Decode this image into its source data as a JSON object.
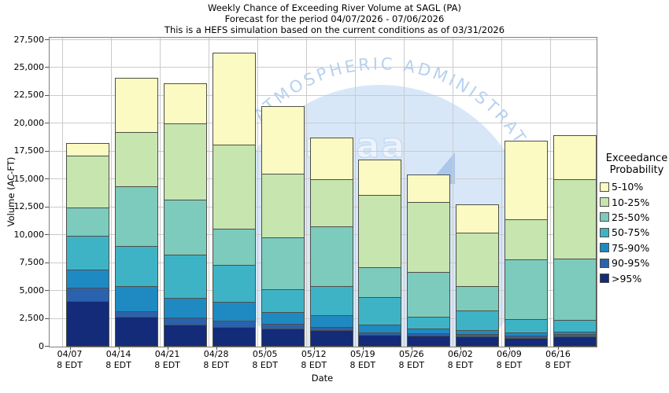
{
  "title": {
    "line1": "Weekly Chance of Exceeding River Volume at SAGL (PA)",
    "line2": "Forecast for the period 04/07/2026 - 07/06/2026",
    "line3": "This is a HEFS simulation based on the current conditions as of 03/31/2026"
  },
  "y_axis": {
    "title": "Volume (AC-FT)",
    "tick_labels": [
      "0",
      "2,500",
      "5,000",
      "7,500",
      "10,000",
      "12,500",
      "15,000",
      "17,500",
      "20,000",
      "22,500",
      "25,000",
      "27,500"
    ]
  },
  "x_axis": {
    "title": "Date",
    "tick_time": "8 EDT",
    "ticks": [
      "04/07",
      "04/14",
      "04/21",
      "04/28",
      "05/05",
      "05/12",
      "05/19",
      "05/26",
      "06/02",
      "06/09",
      "06/16"
    ]
  },
  "legend": {
    "title_lines": [
      "Exceedance",
      "Probability"
    ],
    "entries": [
      {
        "label": "5-10%",
        "color": "#fbfac2"
      },
      {
        "label": "10-25%",
        "color": "#c6e5af"
      },
      {
        "label": "25-50%",
        "color": "#7ccbbd"
      },
      {
        "label": "50-75%",
        "color": "#3fb3c6"
      },
      {
        "label": "75-90%",
        "color": "#1f8ac1"
      },
      {
        "label": "90-95%",
        "color": "#2a62ae"
      },
      {
        "label": ">95%",
        "color": "#132b78"
      }
    ]
  },
  "watermark": {
    "arc_text": "C AND ATMOSPHERIC ADMINISTRAT",
    "logo_text": "noaa"
  },
  "chart_data": {
    "type": "bar",
    "stacked": true,
    "title": "Weekly Chance of Exceeding River Volume at SAGL (PA)",
    "xlabel": "Date",
    "ylabel": "Volume (AC-FT)",
    "ylim": [
      0,
      27500
    ],
    "ytick_interval": 2500,
    "grid": true,
    "legend_position": "right",
    "categories": [
      "04/07",
      "04/14",
      "04/21",
      "04/28",
      "05/05",
      "05/12",
      "05/19",
      "05/26",
      "06/02",
      "06/09",
      "06/16"
    ],
    "units": "AC-FT",
    "series_note": "series listed bottom-to-top of stack; cumulative_ac_ft are cumulative stack tops read from the axis",
    "series": [
      {
        "name": ">95%",
        "color": "#132b78",
        "cumulative_ac_ft": [
          4100,
          2700,
          1950,
          1750,
          1650,
          1450,
          1050,
          1000,
          900,
          800,
          900
        ]
      },
      {
        "name": "90-95%",
        "color": "#2a62ae",
        "cumulative_ac_ft": [
          5300,
          3200,
          2600,
          2350,
          2050,
          1750,
          1300,
          1200,
          1100,
          1000,
          1100
        ]
      },
      {
        "name": "75-90%",
        "color": "#1f8ac1",
        "cumulative_ac_ft": [
          6900,
          5400,
          4350,
          4000,
          3100,
          2800,
          1950,
          1650,
          1450,
          1300,
          1350
        ]
      },
      {
        "name": "50-75%",
        "color": "#3fb3c6",
        "cumulative_ac_ft": [
          9950,
          9000,
          8250,
          7300,
          5150,
          5400,
          4450,
          2700,
          3250,
          2450,
          2400
        ]
      },
      {
        "name": "25-50%",
        "color": "#7ccbbd",
        "cumulative_ac_ft": [
          12500,
          14400,
          13200,
          10550,
          9800,
          10800,
          7100,
          6700,
          5400,
          7800,
          7900
        ]
      },
      {
        "name": "10-25%",
        "color": "#c6e5af",
        "cumulative_ac_ft": [
          17150,
          19250,
          20000,
          18100,
          15500,
          15050,
          13600,
          13000,
          10200,
          11400,
          15000
        ]
      },
      {
        "name": "5-10%",
        "color": "#fbfac2",
        "cumulative_ac_ft": [
          18250,
          24150,
          23650,
          26400,
          21600,
          18750,
          16800,
          15450,
          12750,
          18450,
          18950
        ]
      }
    ]
  }
}
